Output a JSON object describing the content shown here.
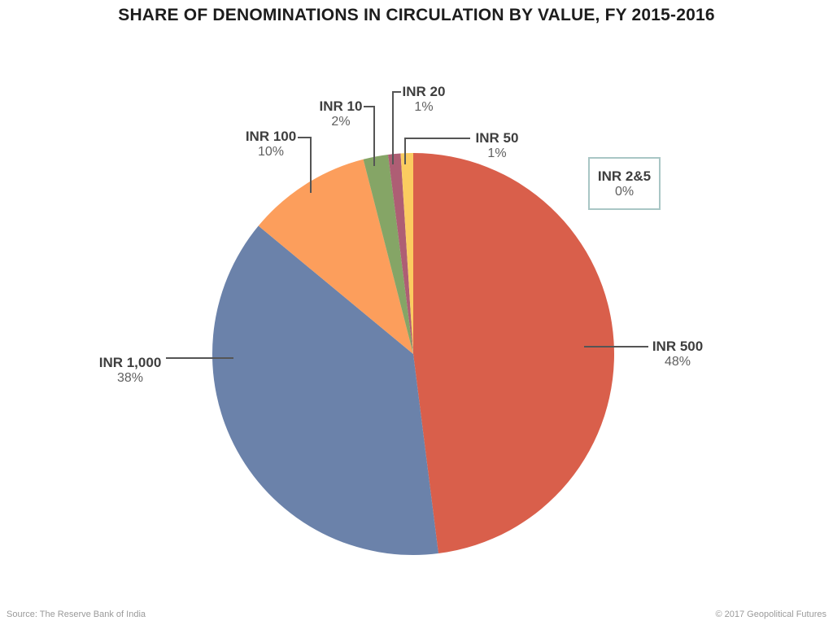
{
  "title": "SHARE OF DENOMINATIONS IN CIRCULATION BY VALUE, FY 2015-2016",
  "footer": {
    "source": "Source: The Reserve Bank of India",
    "copyright": "© 2017 Geopolitical Futures"
  },
  "chart_data": {
    "type": "pie",
    "title": "SHARE OF DENOMINATIONS IN CIRCULATION BY VALUE, FY 2015-2016",
    "unit": "%",
    "start_angle": "12 o'clock",
    "direction": "clockwise",
    "legend_position": "none (outside callout labels with leader lines)",
    "callout_border_color": "#a9c6c5",
    "slices": [
      {
        "label": "INR 500",
        "pct_label": "48%",
        "value": 48,
        "color": "#d95f4b"
      },
      {
        "label": "INR 1,000",
        "pct_label": "38%",
        "value": 38,
        "color": "#6b82aa"
      },
      {
        "label": "INR 100",
        "pct_label": "10%",
        "value": 10,
        "color": "#fc9e5c"
      },
      {
        "label": "INR 10",
        "pct_label": "2%",
        "value": 2,
        "color": "#85a566"
      },
      {
        "label": "INR 20",
        "pct_label": "1%",
        "value": 1,
        "color": "#ae5e74"
      },
      {
        "label": "INR 50",
        "pct_label": "1%",
        "value": 1,
        "color": "#fbcc60"
      },
      {
        "label": "INR 2&5",
        "pct_label": "0%",
        "value": 0,
        "color": null
      }
    ]
  }
}
